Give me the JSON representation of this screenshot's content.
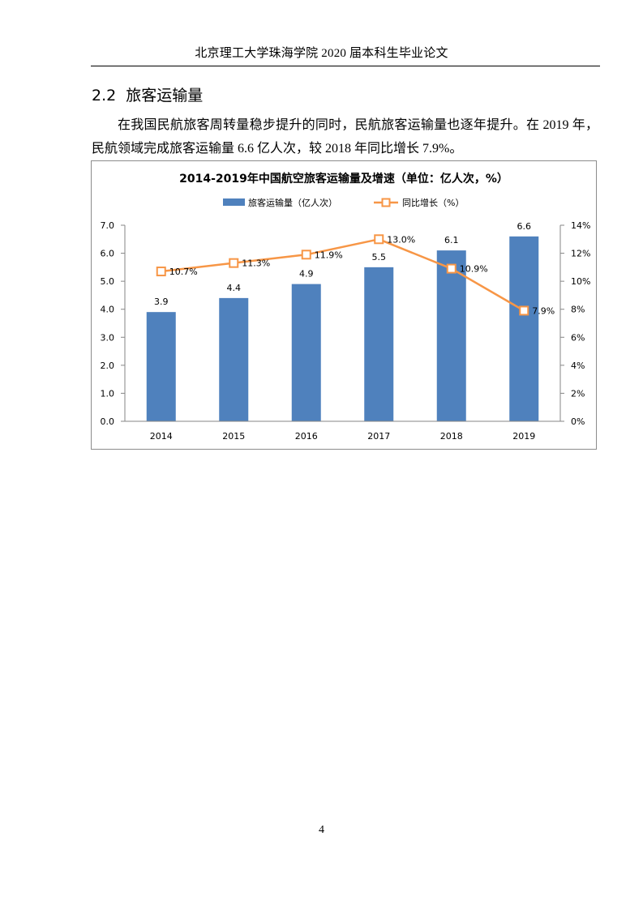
{
  "header": {
    "text": "北京理工大学珠海学院 2020 届本科生毕业论文"
  },
  "section": {
    "number": "2.2",
    "title": "旅客运输量"
  },
  "paragraph": "在我国民航旅客周转量稳步提升的同时，民航旅客运输量也逐年提升。在 2019 年，民航领域完成旅客运输量 6.6 亿人次，较 2018 年同比增长 7.9%。",
  "chart_data": {
    "type": "bar",
    "title": "2014-2019年中国航空旅客运输量及增速（单位：亿人次，%）",
    "categories": [
      "2014",
      "2015",
      "2016",
      "2017",
      "2018",
      "2019"
    ],
    "series": [
      {
        "name": "旅客运输量（亿人次）",
        "type": "bar",
        "axis": "left",
        "values": [
          3.9,
          4.4,
          4.9,
          5.5,
          6.1,
          6.6
        ],
        "labels": [
          "3.9",
          "4.4",
          "4.9",
          "5.5",
          "6.1",
          "6.6"
        ],
        "color": "#4f81bd"
      },
      {
        "name": "同比增长（%）",
        "type": "line",
        "axis": "right",
        "values": [
          10.7,
          11.3,
          11.9,
          13.0,
          10.9,
          7.9
        ],
        "labels": [
          "10.7%",
          "11.3%",
          "11.9%",
          "13.0%",
          "10.9%",
          "7.9%"
        ],
        "color": "#f79646"
      }
    ],
    "ylim": [
      0,
      7
    ],
    "y_ticks": [
      "0.0",
      "1.0",
      "2.0",
      "3.0",
      "4.0",
      "5.0",
      "6.0",
      "7.0"
    ],
    "y2lim": [
      0,
      14
    ],
    "y2_ticks": [
      "0%",
      "2%",
      "4%",
      "6%",
      "8%",
      "10%",
      "12%",
      "14%"
    ],
    "legend_position": "top",
    "grid": false
  },
  "page_number": "4"
}
